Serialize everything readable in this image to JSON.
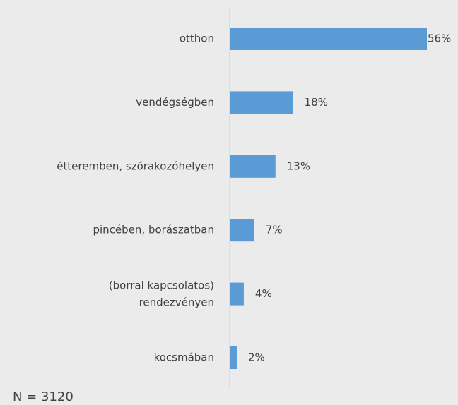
{
  "chart_data": {
    "type": "barh",
    "categories": [
      "otthon",
      "vendégségben",
      "étteremben, szórakozóhelyen",
      "pincében, borászatban",
      "(borral kapcsolatos)\nrendezvényen",
      "kocsmában"
    ],
    "values": [
      56,
      18,
      13,
      7,
      4,
      2
    ],
    "value_labels": [
      "56%",
      "18%",
      "13%",
      "7%",
      "4%",
      "2%"
    ],
    "color": "#5b9bd5",
    "annotation": "N = 3120"
  }
}
